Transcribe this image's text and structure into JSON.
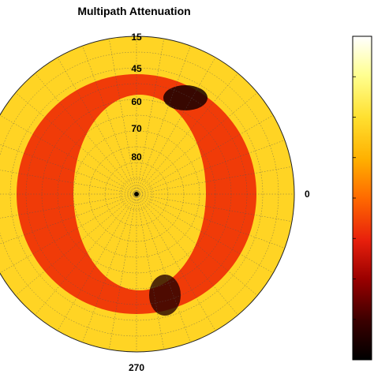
{
  "chart_data": {
    "type": "heatmap",
    "title": "Multipath Attenuation",
    "projection": "polar",
    "elevation_tick_labels": [
      "15",
      "45",
      "60",
      "70",
      "80"
    ],
    "azimuth_tick_labels": [
      "0",
      "270"
    ],
    "colorbar": {
      "colormap": "hot",
      "colors": [
        "#000000",
        "#3a0000",
        "#9a0000",
        "#e8200c",
        "#ff6a00",
        "#ffb000",
        "#ffe030",
        "#ffff90",
        "#ffffff"
      ],
      "tick_labels": []
    },
    "grid": true,
    "regions": [
      {
        "name": "outer-ring",
        "level": 0.72
      },
      {
        "name": "inner-ring",
        "level": 0.42
      },
      {
        "name": "center-disk",
        "level": 0.72
      },
      {
        "name": "right-dark-top",
        "level": 0.05
      },
      {
        "name": "right-dark-bottom",
        "level": 0.08
      }
    ]
  }
}
